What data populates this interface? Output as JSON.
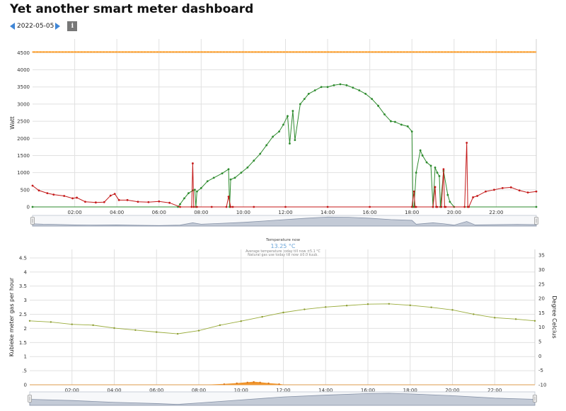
{
  "page": {
    "title": "Yet another smart meter dashboard"
  },
  "date_nav": {
    "date": "2022-05-05",
    "info_label": "i"
  },
  "colors": {
    "production": "#2e8b2e",
    "consumption": "#c41a1a",
    "max_line": "#ff9a1f",
    "temperature": "#9aac3c",
    "gas": "#f0962e",
    "navigator_fill": "#c3cad6",
    "navigator_stroke": "#8793a8",
    "temp_now": "#6aa4d8"
  },
  "temperature_info": {
    "heading": "Temperature now",
    "value": "13.25 °C",
    "line1": "Average temperature today till now ±5.1 °C",
    "line2": "Natural gas use today till now ±0.0 kuub."
  },
  "chart_data": [
    {
      "type": "line",
      "ylabel": "Watt",
      "ylim": [
        0,
        4900
      ],
      "xlim": [
        0.0,
        23.9
      ],
      "yticks": [
        "0",
        "500",
        "1000",
        "1500",
        "2000",
        "2500",
        "3000",
        "3500",
        "4000",
        "4500"
      ],
      "xticks": [
        "02:00",
        "04:00",
        "06:00",
        "08:00",
        "10:00",
        "12:00",
        "14:00",
        "16:00",
        "18:00",
        "20:00",
        "22:00"
      ],
      "grid": true,
      "series": [
        {
          "key": "max",
          "x": [
            0,
            23.9
          ],
          "y": [
            4520,
            4520
          ]
        },
        {
          "key": "production",
          "x": [
            0,
            6.9,
            7.0,
            7.2,
            7.4,
            7.6,
            7.7,
            7.75,
            7.8,
            8.0,
            8.3,
            8.6,
            9.0,
            9.3,
            9.35,
            9.4,
            9.6,
            9.9,
            10.2,
            10.5,
            10.8,
            11.1,
            11.4,
            11.7,
            11.9,
            12.1,
            12.2,
            12.35,
            12.45,
            12.7,
            12.9,
            13.1,
            13.4,
            13.7,
            14.0,
            14.3,
            14.6,
            14.9,
            15.2,
            15.5,
            15.8,
            16.1,
            16.4,
            16.7,
            17.0,
            17.2,
            17.5,
            17.8,
            18.0,
            18.05,
            18.1,
            18.2,
            18.4,
            18.5,
            18.7,
            18.9,
            19.0,
            19.1,
            19.2,
            19.3,
            19.35,
            19.5,
            19.7,
            19.8,
            20.0,
            23.9
          ],
          "y": [
            0,
            0,
            80,
            250,
            400,
            480,
            500,
            0,
            450,
            550,
            750,
            850,
            980,
            1100,
            0,
            800,
            850,
            1000,
            1150,
            1350,
            1550,
            1800,
            2050,
            2200,
            2400,
            2650,
            1850,
            2800,
            1950,
            3000,
            3150,
            3300,
            3400,
            3500,
            3500,
            3550,
            3580,
            3550,
            3480,
            3400,
            3300,
            3150,
            2950,
            2700,
            2500,
            2480,
            2400,
            2350,
            2200,
            0,
            0,
            1000,
            1650,
            1500,
            1300,
            1200,
            0,
            1150,
            1000,
            900,
            0,
            1050,
            350,
            150,
            0,
            0
          ]
        },
        {
          "key": "consumption",
          "x": [
            0,
            0.3,
            0.7,
            1.0,
            1.5,
            1.9,
            2.1,
            2.5,
            3.0,
            3.4,
            3.7,
            3.9,
            4.1,
            4.5,
            5.0,
            5.5,
            6.0,
            6.5,
            7.0,
            7.55,
            7.6,
            7.65,
            7.8,
            8.5,
            9.2,
            9.3,
            9.4,
            9.5,
            10.5,
            12.0,
            14.0,
            16.0,
            18.0,
            18.1,
            18.15,
            18.2,
            19.0,
            19.1,
            19.15,
            19.2,
            19.4,
            19.5,
            19.55,
            19.6,
            20.5,
            20.6,
            20.65,
            20.7,
            20.9,
            21.1,
            21.5,
            21.9,
            22.3,
            22.7,
            23.1,
            23.5,
            23.9
          ],
          "y": [
            620,
            480,
            400,
            360,
            320,
            250,
            270,
            150,
            130,
            140,
            330,
            380,
            200,
            200,
            150,
            140,
            160,
            120,
            0,
            0,
            1270,
            0,
            0,
            0,
            0,
            300,
            0,
            0,
            0,
            0,
            0,
            0,
            0,
            450,
            0,
            0,
            0,
            580,
            0,
            0,
            0,
            1100,
            0,
            0,
            0,
            1870,
            0,
            0,
            280,
            320,
            450,
            500,
            550,
            570,
            480,
            420,
            450
          ]
        }
      ],
      "navigator": {
        "x": [
          0,
          0.5,
          1.0,
          2.0,
          3.0,
          4.0,
          5.0,
          6.0,
          7.0,
          7.6,
          8.0,
          9.0,
          10.0,
          11.0,
          12.0,
          13.0,
          14.0,
          15.0,
          16.0,
          17.0,
          18.0,
          18.2,
          19.0,
          19.5,
          20.0,
          20.6,
          21.0,
          22.0,
          23.0,
          23.9
        ],
        "y": [
          0.25,
          0.2,
          0.18,
          0.12,
          0.1,
          0.12,
          0.08,
          0.06,
          0.1,
          0.35,
          0.2,
          0.3,
          0.4,
          0.55,
          0.7,
          0.85,
          0.98,
          0.95,
          0.85,
          0.7,
          0.62,
          0.2,
          0.35,
          0.25,
          0.1,
          0.5,
          0.12,
          0.15,
          0.18,
          0.15
        ]
      }
    },
    {
      "type": "line",
      "ylabel": "Kubieke meter gas per hour",
      "y2label": "Degree Celcius",
      "ylim": [
        0,
        4.8
      ],
      "y2lim": [
        -10,
        37
      ],
      "xlim": [
        0.0,
        23.9
      ],
      "yticks": [
        "0",
        ".5",
        "1",
        "1.5",
        "2",
        "2.5",
        "3",
        "3.5",
        "4",
        "4.5"
      ],
      "y2ticks": [
        "-10",
        "-5",
        "0",
        "5",
        "10",
        "15",
        "20",
        "25",
        "30",
        "35"
      ],
      "xticks": [
        "02:00",
        "04:00",
        "06:00",
        "08:00",
        "10:00",
        "12:00",
        "14:00",
        "16:00",
        "18:00",
        "20:00",
        "22:00"
      ],
      "grid": true,
      "series": [
        {
          "key": "temperature",
          "x": [
            0,
            1,
            2,
            3,
            4,
            5,
            6,
            7,
            8,
            9,
            10,
            11,
            12,
            13,
            14,
            15,
            16,
            17,
            18,
            19,
            20,
            21,
            22,
            23,
            23.9
          ],
          "y": [
            12.2,
            11.8,
            11.0,
            10.7,
            9.7,
            9.0,
            8.3,
            7.7,
            8.8,
            10.7,
            12.1,
            13.6,
            15.1,
            16.2,
            17.0,
            17.5,
            18.0,
            18.1,
            17.6,
            16.9,
            16.0,
            14.5,
            13.3,
            12.8,
            12.2
          ]
        },
        {
          "key": "gas",
          "x": [
            0,
            8.5,
            9.2,
            9.8,
            10.3,
            10.6,
            10.9,
            11.3,
            11.8,
            12.0,
            23.9
          ],
          "y": [
            0,
            0,
            0.02,
            0.05,
            0.08,
            0.1,
            0.08,
            0.05,
            0.02,
            0,
            0
          ]
        }
      ],
      "navigator": {
        "x": [
          0,
          2,
          4,
          6,
          7,
          8,
          10,
          12,
          14,
          16,
          17,
          18,
          20,
          22,
          23.9
        ],
        "y": [
          0.5,
          0.4,
          0.25,
          0.15,
          0.08,
          0.2,
          0.45,
          0.7,
          0.85,
          0.98,
          1.0,
          0.95,
          0.8,
          0.6,
          0.5
        ]
      }
    }
  ]
}
